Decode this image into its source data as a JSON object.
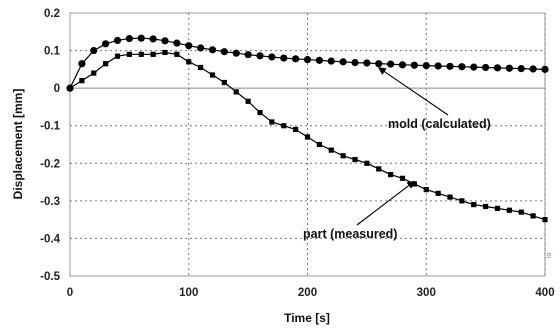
{
  "chart_data": {
    "type": "line",
    "xlabel": "Time [s]",
    "ylabel": "Displacement [mm]",
    "xlim": [
      0,
      400
    ],
    "ylim": [
      -0.5,
      0.2
    ],
    "xticks": [
      "0",
      "100",
      "200",
      "300",
      "400"
    ],
    "yticks": [
      "0.2",
      "0.1",
      "0",
      "-0.1",
      "-0.2",
      "-0.3",
      "-0.4",
      "-0.5"
    ],
    "grid": "dotted vertical lines at x ticks, dotted horizontal lines at y ticks, solid line at y = 0",
    "stray_mark": "lo",
    "series": [
      {
        "name": "mold (calculated)",
        "marker": "circle",
        "color": "#000000",
        "x": [
          0,
          10,
          20,
          30,
          40,
          50,
          60,
          70,
          80,
          90,
          100,
          110,
          120,
          130,
          140,
          150,
          160,
          170,
          180,
          190,
          200,
          210,
          220,
          230,
          240,
          250,
          260,
          270,
          280,
          290,
          300,
          310,
          320,
          330,
          340,
          350,
          360,
          370,
          380,
          390,
          400
        ],
        "y": [
          0.0,
          0.065,
          0.1,
          0.118,
          0.127,
          0.132,
          0.133,
          0.131,
          0.126,
          0.12,
          0.113,
          0.107,
          0.102,
          0.097,
          0.093,
          0.089,
          0.086,
          0.083,
          0.08,
          0.078,
          0.076,
          0.074,
          0.072,
          0.07,
          0.068,
          0.067,
          0.065,
          0.064,
          0.062,
          0.061,
          0.06,
          0.059,
          0.058,
          0.057,
          0.056,
          0.055,
          0.054,
          0.053,
          0.052,
          0.051,
          0.05
        ]
      },
      {
        "name": "part (measured)",
        "marker": "square",
        "color": "#000000",
        "x": [
          0,
          10,
          20,
          30,
          40,
          50,
          60,
          70,
          80,
          90,
          100,
          110,
          120,
          130,
          140,
          150,
          160,
          170,
          180,
          190,
          200,
          210,
          220,
          230,
          240,
          250,
          260,
          270,
          280,
          290,
          300,
          310,
          320,
          330,
          340,
          350,
          360,
          370,
          380,
          390,
          400
        ],
        "y": [
          0.0,
          0.02,
          0.04,
          0.065,
          0.085,
          0.09,
          0.09,
          0.09,
          0.095,
          0.09,
          0.07,
          0.055,
          0.035,
          0.015,
          -0.01,
          -0.035,
          -0.065,
          -0.09,
          -0.1,
          -0.11,
          -0.13,
          -0.15,
          -0.165,
          -0.18,
          -0.19,
          -0.2,
          -0.215,
          -0.23,
          -0.24,
          -0.255,
          -0.27,
          -0.28,
          -0.29,
          -0.3,
          -0.31,
          -0.315,
          -0.32,
          -0.325,
          -0.33,
          -0.34,
          -0.35
        ]
      }
    ],
    "annotations": [
      {
        "text": "mold (calculated)",
        "series": "mold (calculated)",
        "x": 260,
        "y": 0.065
      },
      {
        "text": "part (measured)",
        "series": "part (measured)",
        "x": 290,
        "y": -0.24
      }
    ]
  }
}
